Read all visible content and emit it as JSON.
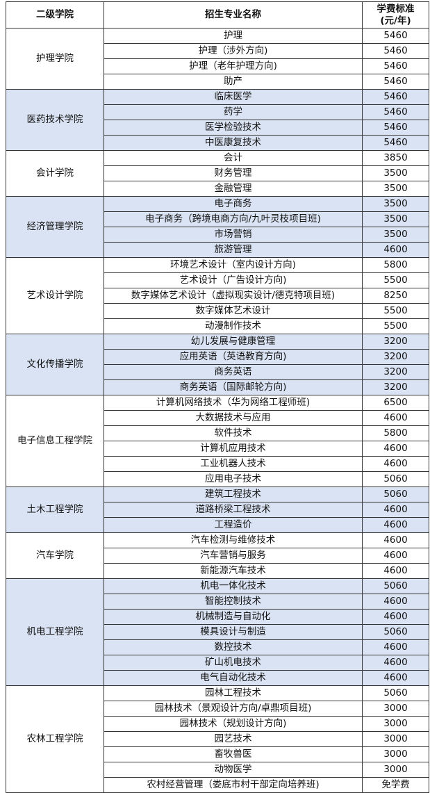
{
  "header": {
    "college": "二级学院",
    "major": "招生专业名称",
    "fee_line1": "学费标准",
    "fee_line2": "(元/年)"
  },
  "shade_color": "#dae3f3",
  "groups": [
    {
      "college": "护理学院",
      "shaded": false,
      "rows": [
        [
          "护理",
          "5460"
        ],
        [
          "护理（涉外方向)",
          "5460"
        ],
        [
          "护理（老年护理方向)",
          "5460"
        ],
        [
          "助产",
          "5460"
        ]
      ]
    },
    {
      "college": "医药技术学院",
      "shaded": true,
      "rows": [
        [
          "临床医学",
          "5460"
        ],
        [
          "药学",
          "5460"
        ],
        [
          "医学检验技术",
          "5460"
        ],
        [
          "中医康复技术",
          "5460"
        ]
      ]
    },
    {
      "college": "会计学院",
      "shaded": false,
      "rows": [
        [
          "会计",
          "3850"
        ],
        [
          "财务管理",
          "3500"
        ],
        [
          "金融管理",
          "3500"
        ]
      ]
    },
    {
      "college": "经济管理学院",
      "shaded": true,
      "rows": [
        [
          "电子商务",
          "3500"
        ],
        [
          "电子商务（跨境电商方向/九叶灵枝项目班)",
          "3500"
        ],
        [
          "市场营销",
          "3500"
        ],
        [
          "旅游管理",
          "4600"
        ]
      ]
    },
    {
      "college": "艺术设计学院",
      "shaded": false,
      "rows": [
        [
          "环境艺术设计（室内设计方向)",
          "5800"
        ],
        [
          "艺术设计（广告设计方向)",
          "5500"
        ],
        [
          "数字媒体艺术设计（虚拟现实设计/德克特项目班)",
          "8250"
        ],
        [
          "数字媒体艺术设计",
          "5500"
        ],
        [
          "动漫制作技术",
          "5500"
        ]
      ]
    },
    {
      "college": "文化传播学院",
      "shaded": true,
      "rows": [
        [
          "幼儿发展与健康管理",
          "3200"
        ],
        [
          "应用英语（英语教育方向)",
          "3200"
        ],
        [
          "商务英语",
          "3200"
        ],
        [
          "商务英语（国际邮轮方向)",
          "3200"
        ]
      ]
    },
    {
      "college": "电子信息工程学院",
      "shaded": false,
      "rows": [
        [
          "计算机网络技术（华为网络工程师班)",
          "6500"
        ],
        [
          "大数据技术与应用",
          "4600"
        ],
        [
          "软件技术",
          "5800"
        ],
        [
          "计算机应用技术",
          "4600"
        ],
        [
          "工业机器人技术",
          "4600"
        ],
        [
          "应用电子技术",
          "5060"
        ]
      ]
    },
    {
      "college": "土木工程学院",
      "shaded": true,
      "rows": [
        [
          "建筑工程技术",
          "5060"
        ],
        [
          "道路桥梁工程技术",
          "4600"
        ],
        [
          "工程造价",
          "4600"
        ]
      ]
    },
    {
      "college": "汽车学院",
      "shaded": false,
      "rows": [
        [
          "汽车检测与维修技术",
          "4600"
        ],
        [
          "汽车营销与服务",
          "4600"
        ],
        [
          "新能源汽车技术",
          "4600"
        ]
      ]
    },
    {
      "college": "机电工程学院",
      "shaded": true,
      "rows": [
        [
          "机电一体化技术",
          "5060"
        ],
        [
          "智能控制技术",
          "4600"
        ],
        [
          "机械制造与自动化",
          "4600"
        ],
        [
          "模具设计与制造",
          "5060"
        ],
        [
          "数控技术",
          "4600"
        ],
        [
          "矿山机电技术",
          "4600"
        ],
        [
          "电气自动化技术",
          "4600"
        ]
      ]
    },
    {
      "college": "农林工程学院",
      "shaded": false,
      "rows": [
        [
          "园林工程技术",
          "5060"
        ],
        [
          "园林技术（景观设计方向/卓鼎项目班)",
          "3000"
        ],
        [
          "园林技术（规划设计方向)",
          "3000"
        ],
        [
          "园艺技术",
          "3000"
        ],
        [
          "畜牧兽医",
          "3000"
        ],
        [
          "动物医学",
          "3000"
        ],
        [
          "农村经营管理（娄底市村干部定向培养班)",
          "免学费"
        ]
      ]
    }
  ]
}
